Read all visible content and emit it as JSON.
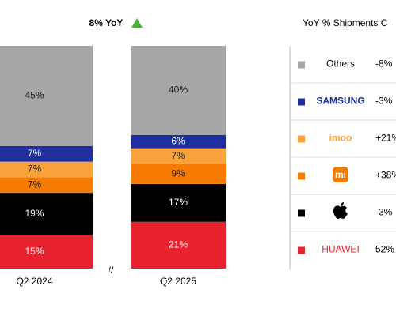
{
  "chart_data": {
    "type": "bar",
    "stacked": true,
    "title": "8% YoY",
    "legend_title": "YoY % Shipments C",
    "categories": [
      "Q2 2024",
      "Q2 2025"
    ],
    "ylim": [
      0,
      100
    ],
    "series": [
      {
        "name": "HUAWEI",
        "color": "#e8232f",
        "values": [
          15,
          21
        ],
        "value_labels": [
          "15%",
          "21%"
        ],
        "yoy": "52%"
      },
      {
        "color": "#000000",
        "values": [
          19,
          17
        ],
        "value_labels": [
          "19%",
          "17%"
        ],
        "yoy": "-3%"
      },
      {
        "color": "#f57c00",
        "values": [
          7,
          9
        ],
        "value_labels": [
          "7%",
          "9%"
        ],
        "yoy": "+38%"
      },
      {
        "name": "imoo",
        "color": "#f9a13a",
        "values": [
          7,
          7
        ],
        "value_labels": [
          "7%",
          "7%"
        ],
        "yoy": "+21%"
      },
      {
        "name": "SAMSUNG",
        "color": "#1f2f9e",
        "values": [
          7,
          6
        ],
        "value_labels": [
          "7%",
          "6%"
        ],
        "yoy": "-3%"
      },
      {
        "name": "Others",
        "color": "#a6a6a6",
        "values": [
          45,
          40
        ],
        "value_labels": [
          "45%",
          "40%"
        ],
        "yoy": "-8%"
      }
    ]
  }
}
